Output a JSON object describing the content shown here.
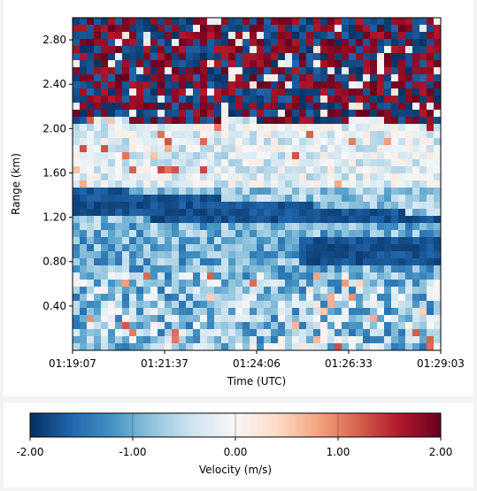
{
  "chart_data": {
    "type": "heatmap",
    "xlabel": "Time (UTC)",
    "ylabel": "Range (km)",
    "x_ticks": [
      "01:19:07",
      "01:21:37",
      "01:24:06",
      "01:26:33",
      "01:29:03"
    ],
    "y_ticks": [
      "0.40",
      "0.80",
      "1.20",
      "1.60",
      "2.00",
      "2.40",
      "2.80"
    ],
    "y_tick_values": [
      0.4,
      0.8,
      1.2,
      1.6,
      2.0,
      2.4,
      2.8
    ],
    "ylim": [
      0.0,
      3.0
    ],
    "x_range": [
      "01:19:07",
      "01:29:03"
    ],
    "colormap": "RdBu_r",
    "signal_top_km": 2.05,
    "colorbar": {
      "label": "Velocity (m/s)",
      "ticks": [
        "-2.00",
        "-1.00",
        "0.00",
        "1.00",
        "2.00"
      ],
      "tick_values": [
        -2.0,
        -1.0,
        0.0,
        1.0,
        2.0
      ],
      "range": [
        -2.0,
        2.0
      ],
      "colors": [
        "#053061",
        "#2166ac",
        "#4393c3",
        "#92c5de",
        "#d1e5f0",
        "#f7f7f7",
        "#fddbc7",
        "#f4a582",
        "#d6604d",
        "#b2182b",
        "#67001f"
      ]
    },
    "grid": false
  }
}
